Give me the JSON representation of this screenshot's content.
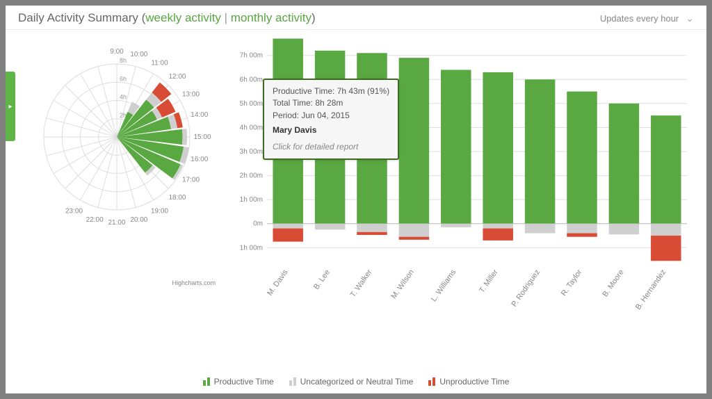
{
  "header": {
    "title_prefix": "Daily Activity Summary",
    "link_weekly": "weekly activity",
    "link_monthly": "monthly activity",
    "updates_label": "Updates every hour"
  },
  "colors": {
    "productive": "#59a842",
    "neutral": "#cfcfcf",
    "unproductive": "#d84b35",
    "gridline": "#dddddd",
    "axis_text": "#888888",
    "panel_bg": "#ffffff",
    "tooltip_border": "#3d6b1f",
    "tooltip_bg": "#f6f6f6"
  },
  "font": {
    "family": "Arial",
    "axis_size_pt": 10,
    "title_size_pt": 13
  },
  "polar": {
    "type": "polar-bar",
    "hours": [
      "9:00",
      "10:00",
      "11:00",
      "12:00",
      "13:00",
      "14:00",
      "15:00",
      "16:00",
      "17:00",
      "18:00",
      "19:00",
      "20:00",
      "21:00",
      "22:00",
      "23:00"
    ],
    "radial_ticks": [
      "2h",
      "4h",
      "6h",
      "8h"
    ],
    "radial_max": 8,
    "segments": [
      {
        "hour": "11:00",
        "prod": 3.0,
        "neut": 1.2,
        "unprod": 0.0
      },
      {
        "hour": "12:00",
        "prod": 5.2,
        "neut": 1.0,
        "unprod": 1.4
      },
      {
        "hour": "13:00",
        "prod": 4.8,
        "neut": 0.6,
        "unprod": 1.6
      },
      {
        "hour": "14:00",
        "prod": 6.0,
        "neut": 0.7,
        "unprod": 0.6
      },
      {
        "hour": "15:00",
        "prod": 7.2,
        "neut": 0.5,
        "unprod": 0.0
      },
      {
        "hour": "16:00",
        "prod": 7.4,
        "neut": 0.6,
        "unprod": 0.0
      },
      {
        "hour": "17:00",
        "prod": 7.6,
        "neut": 0.3,
        "unprod": 0.0
      },
      {
        "hour": "18:00",
        "prod": 5.0,
        "neut": 0.4,
        "unprod": 0.0
      }
    ],
    "credits": "Highcharts.com"
  },
  "bar": {
    "type": "bar",
    "y_ticks": [
      "7h 00m",
      "6h 00m",
      "5h 00m",
      "4h 00m",
      "3h 00m",
      "2h 00m",
      "1h 00m",
      "0m",
      "1h 00m"
    ],
    "y_values": [
      7,
      6,
      5,
      4,
      3,
      2,
      1,
      0,
      -1
    ],
    "ylim": [
      -1.6,
      7.6
    ],
    "bar_width": 0.72,
    "people": [
      {
        "name": "M. Davis",
        "prod": 7.7,
        "neut": 0.2,
        "unprod": 0.55
      },
      {
        "name": "B. Lee",
        "prod": 7.2,
        "neut": 0.25,
        "unprod": 0.0
      },
      {
        "name": "T. Walker",
        "prod": 7.1,
        "neut": 0.35,
        "unprod": 0.12
      },
      {
        "name": "M. Wilson",
        "prod": 6.9,
        "neut": 0.55,
        "unprod": 0.12
      },
      {
        "name": "L. Williams",
        "prod": 6.4,
        "neut": 0.15,
        "unprod": 0.0
      },
      {
        "name": "T. Miller",
        "prod": 6.3,
        "neut": 0.2,
        "unprod": 0.5
      },
      {
        "name": "P. Rodriguez",
        "prod": 6.0,
        "neut": 0.4,
        "unprod": 0.0
      },
      {
        "name": "R. Taylor",
        "prod": 5.5,
        "neut": 0.4,
        "unprod": 0.15
      },
      {
        "name": "B. Moore",
        "prod": 5.0,
        "neut": 0.45,
        "unprod": 0.0
      },
      {
        "name": "B. Hernandez",
        "prod": 4.5,
        "neut": 0.5,
        "unprod": 1.05
      }
    ]
  },
  "tooltip": {
    "line1": "Productive Time: 7h 43m (91%)",
    "line2": "Total Time: 8h 28m",
    "line3": "Period: Jun 04, 2015",
    "name": "Mary Davis",
    "cta": "Click for detailed report"
  },
  "legend": {
    "productive": "Productive Time",
    "neutral": "Uncategorized or Neutral Time",
    "unproductive": "Unproductive Time"
  }
}
